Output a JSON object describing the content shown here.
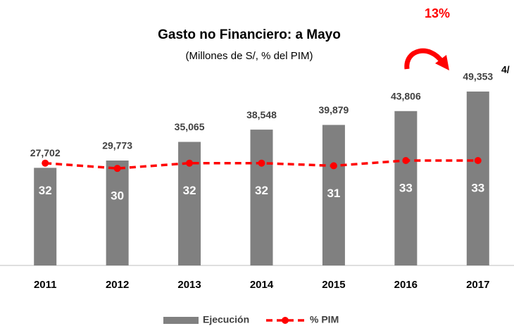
{
  "chart_data": {
    "type": "bar",
    "title": "Gasto no Financiero: a Mayo",
    "subtitle": "(Millones de S/, % del PIM)",
    "annotations": [
      "13%",
      "4/"
    ],
    "categories": [
      "2011",
      "2012",
      "2013",
      "2014",
      "2015",
      "2016",
      "2017"
    ],
    "ylim": [
      0,
      67000
    ],
    "y2lim": [
      -7,
      83
    ],
    "legend": "bottom",
    "series": [
      {
        "name": "Ejecución",
        "type": "bar",
        "color": "#808080",
        "values": [
          27702,
          29773,
          35065,
          38548,
          39879,
          43806,
          49353
        ],
        "value_labels": [
          "27,702",
          "29,773",
          "35,065",
          "38,548",
          "39,879",
          "43,806",
          "49,353"
        ]
      },
      {
        "name": "% PIM",
        "type": "line",
        "axis": "y2",
        "color": "#ff0000",
        "values": [
          32,
          30,
          32,
          32,
          31,
          33,
          33
        ]
      }
    ]
  }
}
